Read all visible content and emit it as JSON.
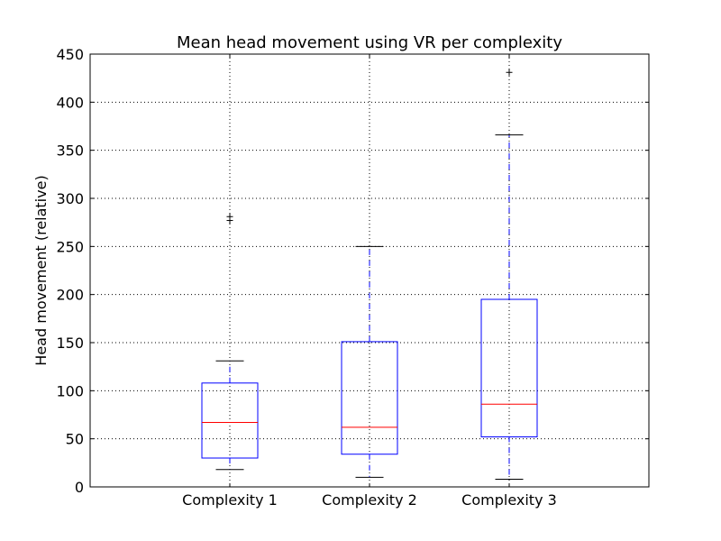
{
  "chart_data": {
    "type": "boxplot",
    "title": "Mean head movement using VR per complexity",
    "xlabel": "",
    "ylabel": "Head movement (relative)",
    "ylim": [
      0,
      450
    ],
    "yticks": [
      "0",
      "50",
      "100",
      "150",
      "200",
      "250",
      "300",
      "350",
      "400",
      "450"
    ],
    "grid": true,
    "categories": [
      "Complexity 1",
      "Complexity 2",
      "Complexity 3"
    ],
    "boxes": [
      {
        "whisker_low": 18,
        "q1": 30,
        "median": 67,
        "q3": 108,
        "whisker_high": 131,
        "outliers": [
          277,
          281
        ]
      },
      {
        "whisker_low": 10,
        "q1": 34,
        "median": 62,
        "q3": 151,
        "whisker_high": 250,
        "outliers": []
      },
      {
        "whisker_low": 8,
        "q1": 52,
        "median": 86,
        "q3": 195,
        "whisker_high": 366,
        "outliers": [
          431
        ]
      }
    ],
    "colors": {
      "box": "#0000ff",
      "whisker": "#0000ff",
      "median": "#ff0000",
      "cap": "#000000",
      "outlier": "#000000",
      "grid": "#000000"
    }
  }
}
